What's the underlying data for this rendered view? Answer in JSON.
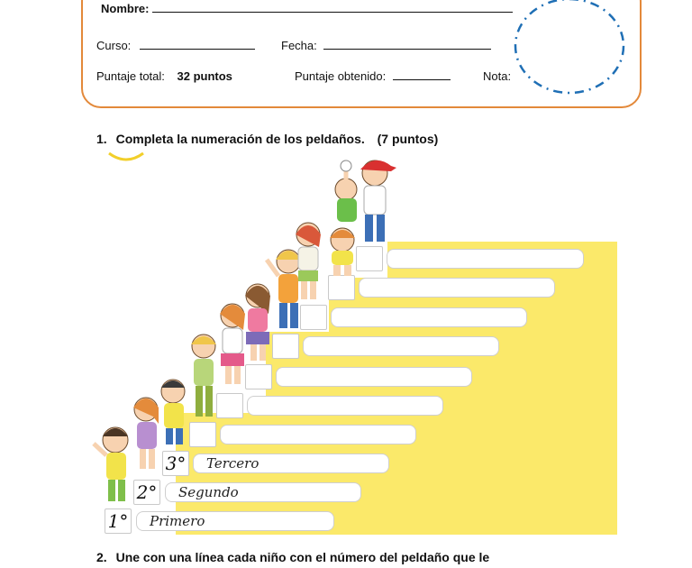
{
  "header": {
    "nombre_label": "Nombre:",
    "curso_label": "Curso:",
    "fecha_label": "Fecha:",
    "puntaje_total_label": "Puntaje total:",
    "puntaje_total_value": "32 puntos",
    "puntaje_obtenido_label": "Puntaje obtenido:",
    "nota_label": "Nota:"
  },
  "question1": {
    "number": "1.",
    "text": "Completa la numeración de los peldaños.",
    "points": "(7 puntos)"
  },
  "stairs": [
    {
      "ordinal": "1°",
      "word": "Primero"
    },
    {
      "ordinal": "2°",
      "word": "Segundo"
    },
    {
      "ordinal": "3°",
      "word": "Tercero"
    },
    {
      "ordinal": "",
      "word": ""
    },
    {
      "ordinal": "",
      "word": ""
    },
    {
      "ordinal": "",
      "word": ""
    },
    {
      "ordinal": "",
      "word": ""
    },
    {
      "ordinal": "",
      "word": ""
    },
    {
      "ordinal": "",
      "word": ""
    },
    {
      "ordinal": "",
      "word": ""
    }
  ],
  "question2": {
    "number": "2.",
    "text": "Une con una línea cada niño con el número del peldaño que le"
  },
  "colors": {
    "header_border": "#e3893a",
    "circle_dash": "#1f6fb5",
    "stair_yellow": "#fbe96a"
  }
}
